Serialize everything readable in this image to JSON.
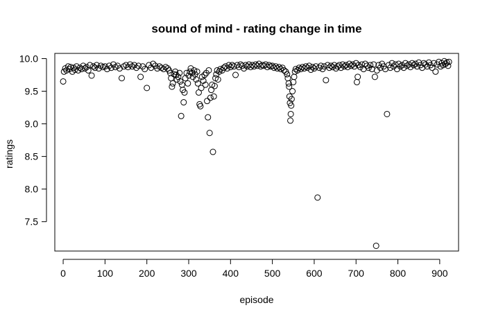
{
  "chart_data": {
    "type": "scatter",
    "title": "sound of mind - rating change in time",
    "xlabel": "episode",
    "ylabel": "ratings",
    "xlim": [
      -20,
      945
    ],
    "ylim": [
      7.05,
      10.08
    ],
    "x_ticks": [
      0,
      100,
      200,
      300,
      400,
      500,
      600,
      700,
      800,
      900
    ],
    "y_ticks": [
      7.5,
      8.0,
      8.5,
      9.0,
      9.5,
      10.0
    ],
    "x_tick_labels": [
      "0",
      "100",
      "200",
      "300",
      "400",
      "500",
      "600",
      "700",
      "800",
      "900"
    ],
    "y_tick_labels": [
      "7.5",
      "8.0",
      "8.5",
      "9.0",
      "9.5",
      "10.0"
    ],
    "grid": false,
    "legend": "none",
    "marker": "open-circle",
    "color": "#000000",
    "series": [
      {
        "points": [
          [
            0,
            9.65
          ],
          [
            2,
            9.8
          ],
          [
            5,
            9.85
          ],
          [
            8,
            9.82
          ],
          [
            12,
            9.88
          ],
          [
            15,
            9.84
          ],
          [
            18,
            9.87
          ],
          [
            22,
            9.8
          ],
          [
            25,
            9.86
          ],
          [
            28,
            9.83
          ],
          [
            32,
            9.88
          ],
          [
            36,
            9.82
          ],
          [
            40,
            9.86
          ],
          [
            44,
            9.84
          ],
          [
            48,
            9.89
          ],
          [
            52,
            9.85
          ],
          [
            56,
            9.87
          ],
          [
            60,
            9.82
          ],
          [
            64,
            9.9
          ],
          [
            68,
            9.74
          ],
          [
            72,
            9.88
          ],
          [
            76,
            9.86
          ],
          [
            80,
            9.9
          ],
          [
            85,
            9.85
          ],
          [
            90,
            9.89
          ],
          [
            95,
            9.87
          ],
          [
            100,
            9.88
          ],
          [
            105,
            9.84
          ],
          [
            110,
            9.89
          ],
          [
            115,
            9.86
          ],
          [
            120,
            9.91
          ],
          [
            125,
            9.87
          ],
          [
            130,
            9.89
          ],
          [
            135,
            9.85
          ],
          [
            140,
            9.7
          ],
          [
            145,
            9.88
          ],
          [
            150,
            9.9
          ],
          [
            155,
            9.87
          ],
          [
            160,
            9.91
          ],
          [
            165,
            9.88
          ],
          [
            170,
            9.9
          ],
          [
            175,
            9.86
          ],
          [
            180,
            9.89
          ],
          [
            185,
            9.72
          ],
          [
            190,
            9.88
          ],
          [
            195,
            9.84
          ],
          [
            200,
            9.55
          ],
          [
            205,
            9.9
          ],
          [
            210,
            9.86
          ],
          [
            215,
            9.92
          ],
          [
            220,
            9.89
          ],
          [
            225,
            9.85
          ],
          [
            230,
            9.88
          ],
          [
            235,
            9.86
          ],
          [
            240,
            9.84
          ],
          [
            245,
            9.87
          ],
          [
            250,
            9.85
          ],
          [
            253,
            9.82
          ],
          [
            256,
            9.78
          ],
          [
            258,
            9.7
          ],
          [
            260,
            9.57
          ],
          [
            262,
            9.62
          ],
          [
            265,
            9.76
          ],
          [
            268,
            9.8
          ],
          [
            270,
            9.75
          ],
          [
            272,
            9.68
          ],
          [
            275,
            9.72
          ],
          [
            278,
            9.78
          ],
          [
            280,
            9.65
          ],
          [
            282,
            9.12
          ],
          [
            284,
            9.6
          ],
          [
            286,
            9.52
          ],
          [
            288,
            9.33
          ],
          [
            290,
            9.48
          ],
          [
            292,
            9.7
          ],
          [
            295,
            9.78
          ],
          [
            298,
            9.62
          ],
          [
            300,
            9.74
          ],
          [
            303,
            9.8
          ],
          [
            305,
            9.85
          ],
          [
            308,
            9.78
          ],
          [
            310,
            9.72
          ],
          [
            313,
            9.82
          ],
          [
            315,
            9.76
          ],
          [
            318,
            9.68
          ],
          [
            320,
            9.8
          ],
          [
            322,
            9.62
          ],
          [
            324,
            9.48
          ],
          [
            326,
            9.3
          ],
          [
            328,
            9.27
          ],
          [
            330,
            9.55
          ],
          [
            332,
            9.72
          ],
          [
            335,
            9.66
          ],
          [
            338,
            9.75
          ],
          [
            340,
            9.6
          ],
          [
            342,
            9.78
          ],
          [
            344,
            9.35
          ],
          [
            346,
            9.1
          ],
          [
            348,
            9.82
          ],
          [
            350,
            8.86
          ],
          [
            352,
            9.4
          ],
          [
            354,
            9.52
          ],
          [
            356,
            9.6
          ],
          [
            358,
            8.57
          ],
          [
            360,
            9.42
          ],
          [
            362,
            9.58
          ],
          [
            364,
            9.7
          ],
          [
            366,
            9.76
          ],
          [
            368,
            9.82
          ],
          [
            370,
            9.68
          ],
          [
            373,
            9.8
          ],
          [
            376,
            9.84
          ],
          [
            380,
            9.82
          ],
          [
            384,
            9.86
          ],
          [
            388,
            9.88
          ],
          [
            392,
            9.85
          ],
          [
            396,
            9.9
          ],
          [
            400,
            9.87
          ],
          [
            404,
            9.9
          ],
          [
            408,
            9.88
          ],
          [
            412,
            9.75
          ],
          [
            416,
            9.9
          ],
          [
            420,
            9.87
          ],
          [
            424,
            9.91
          ],
          [
            428,
            9.89
          ],
          [
            432,
            9.85
          ],
          [
            436,
            9.9
          ],
          [
            440,
            9.88
          ],
          [
            444,
            9.91
          ],
          [
            448,
            9.87
          ],
          [
            452,
            9.9
          ],
          [
            456,
            9.88
          ],
          [
            460,
            9.91
          ],
          [
            464,
            9.89
          ],
          [
            468,
            9.92
          ],
          [
            472,
            9.88
          ],
          [
            476,
            9.9
          ],
          [
            480,
            9.89
          ],
          [
            484,
            9.91
          ],
          [
            488,
            9.87
          ],
          [
            492,
            9.9
          ],
          [
            496,
            9.88
          ],
          [
            500,
            9.89
          ],
          [
            504,
            9.86
          ],
          [
            508,
            9.88
          ],
          [
            512,
            9.85
          ],
          [
            516,
            9.87
          ],
          [
            520,
            9.84
          ],
          [
            524,
            9.86
          ],
          [
            528,
            9.82
          ],
          [
            532,
            9.8
          ],
          [
            535,
            9.76
          ],
          [
            537,
            9.7
          ],
          [
            539,
            9.62
          ],
          [
            540,
            9.57
          ],
          [
            541,
            9.42
          ],
          [
            542,
            9.32
          ],
          [
            543,
            9.05
          ],
          [
            544,
            9.15
          ],
          [
            545,
            9.28
          ],
          [
            546,
            9.38
          ],
          [
            548,
            9.5
          ],
          [
            550,
            9.64
          ],
          [
            552,
            9.72
          ],
          [
            554,
            9.8
          ],
          [
            556,
            9.84
          ],
          [
            560,
            9.82
          ],
          [
            564,
            9.86
          ],
          [
            568,
            9.84
          ],
          [
            572,
            9.87
          ],
          [
            576,
            9.85
          ],
          [
            580,
            9.88
          ],
          [
            584,
            9.86
          ],
          [
            588,
            9.89
          ],
          [
            592,
            9.83
          ],
          [
            596,
            9.87
          ],
          [
            600,
            9.85
          ],
          [
            604,
            9.88
          ],
          [
            608,
            7.87
          ],
          [
            612,
            9.86
          ],
          [
            616,
            9.89
          ],
          [
            620,
            9.84
          ],
          [
            624,
            9.88
          ],
          [
            628,
            9.67
          ],
          [
            632,
            9.9
          ],
          [
            636,
            9.86
          ],
          [
            640,
            9.89
          ],
          [
            644,
            9.87
          ],
          [
            648,
            9.9
          ],
          [
            652,
            9.85
          ],
          [
            656,
            9.88
          ],
          [
            660,
            9.9
          ],
          [
            664,
            9.86
          ],
          [
            668,
            9.91
          ],
          [
            672,
            9.88
          ],
          [
            676,
            9.9
          ],
          [
            680,
            9.87
          ],
          [
            684,
            9.92
          ],
          [
            688,
            9.89
          ],
          [
            692,
            9.91
          ],
          [
            696,
            9.88
          ],
          [
            700,
            9.93
          ],
          [
            702,
            9.64
          ],
          [
            704,
            9.72
          ],
          [
            706,
            9.9
          ],
          [
            710,
            9.87
          ],
          [
            714,
            9.91
          ],
          [
            718,
            9.84
          ],
          [
            722,
            9.92
          ],
          [
            726,
            9.89
          ],
          [
            730,
            9.86
          ],
          [
            734,
            9.9
          ],
          [
            738,
            9.84
          ],
          [
            742,
            9.91
          ],
          [
            745,
            9.72
          ],
          [
            748,
            7.13
          ],
          [
            750,
            9.82
          ],
          [
            754,
            9.9
          ],
          [
            758,
            9.86
          ],
          [
            762,
            9.92
          ],
          [
            766,
            9.88
          ],
          [
            770,
            9.84
          ],
          [
            774,
            9.15
          ],
          [
            778,
            9.9
          ],
          [
            782,
            9.86
          ],
          [
            786,
            9.93
          ],
          [
            790,
            9.88
          ],
          [
            794,
            9.91
          ],
          [
            798,
            9.84
          ],
          [
            802,
            9.92
          ],
          [
            806,
            9.88
          ],
          [
            810,
            9.9
          ],
          [
            814,
            9.86
          ],
          [
            818,
            9.93
          ],
          [
            822,
            9.89
          ],
          [
            826,
            9.91
          ],
          [
            830,
            9.87
          ],
          [
            834,
            9.93
          ],
          [
            838,
            9.9
          ],
          [
            842,
            9.92
          ],
          [
            846,
            9.88
          ],
          [
            850,
            9.94
          ],
          [
            854,
            9.9
          ],
          [
            858,
            9.86
          ],
          [
            862,
            9.93
          ],
          [
            866,
            9.91
          ],
          [
            870,
            9.88
          ],
          [
            874,
            9.94
          ],
          [
            878,
            9.9
          ],
          [
            882,
            9.86
          ],
          [
            886,
            9.93
          ],
          [
            890,
            9.8
          ],
          [
            894,
            9.91
          ],
          [
            898,
            9.95
          ],
          [
            902,
            9.88
          ],
          [
            905,
            9.93
          ],
          [
            908,
            9.9
          ],
          [
            911,
            9.96
          ],
          [
            914,
            9.92
          ],
          [
            917,
            9.94
          ],
          [
            920,
            9.89
          ],
          [
            922,
            9.95
          ]
        ]
      }
    ]
  }
}
